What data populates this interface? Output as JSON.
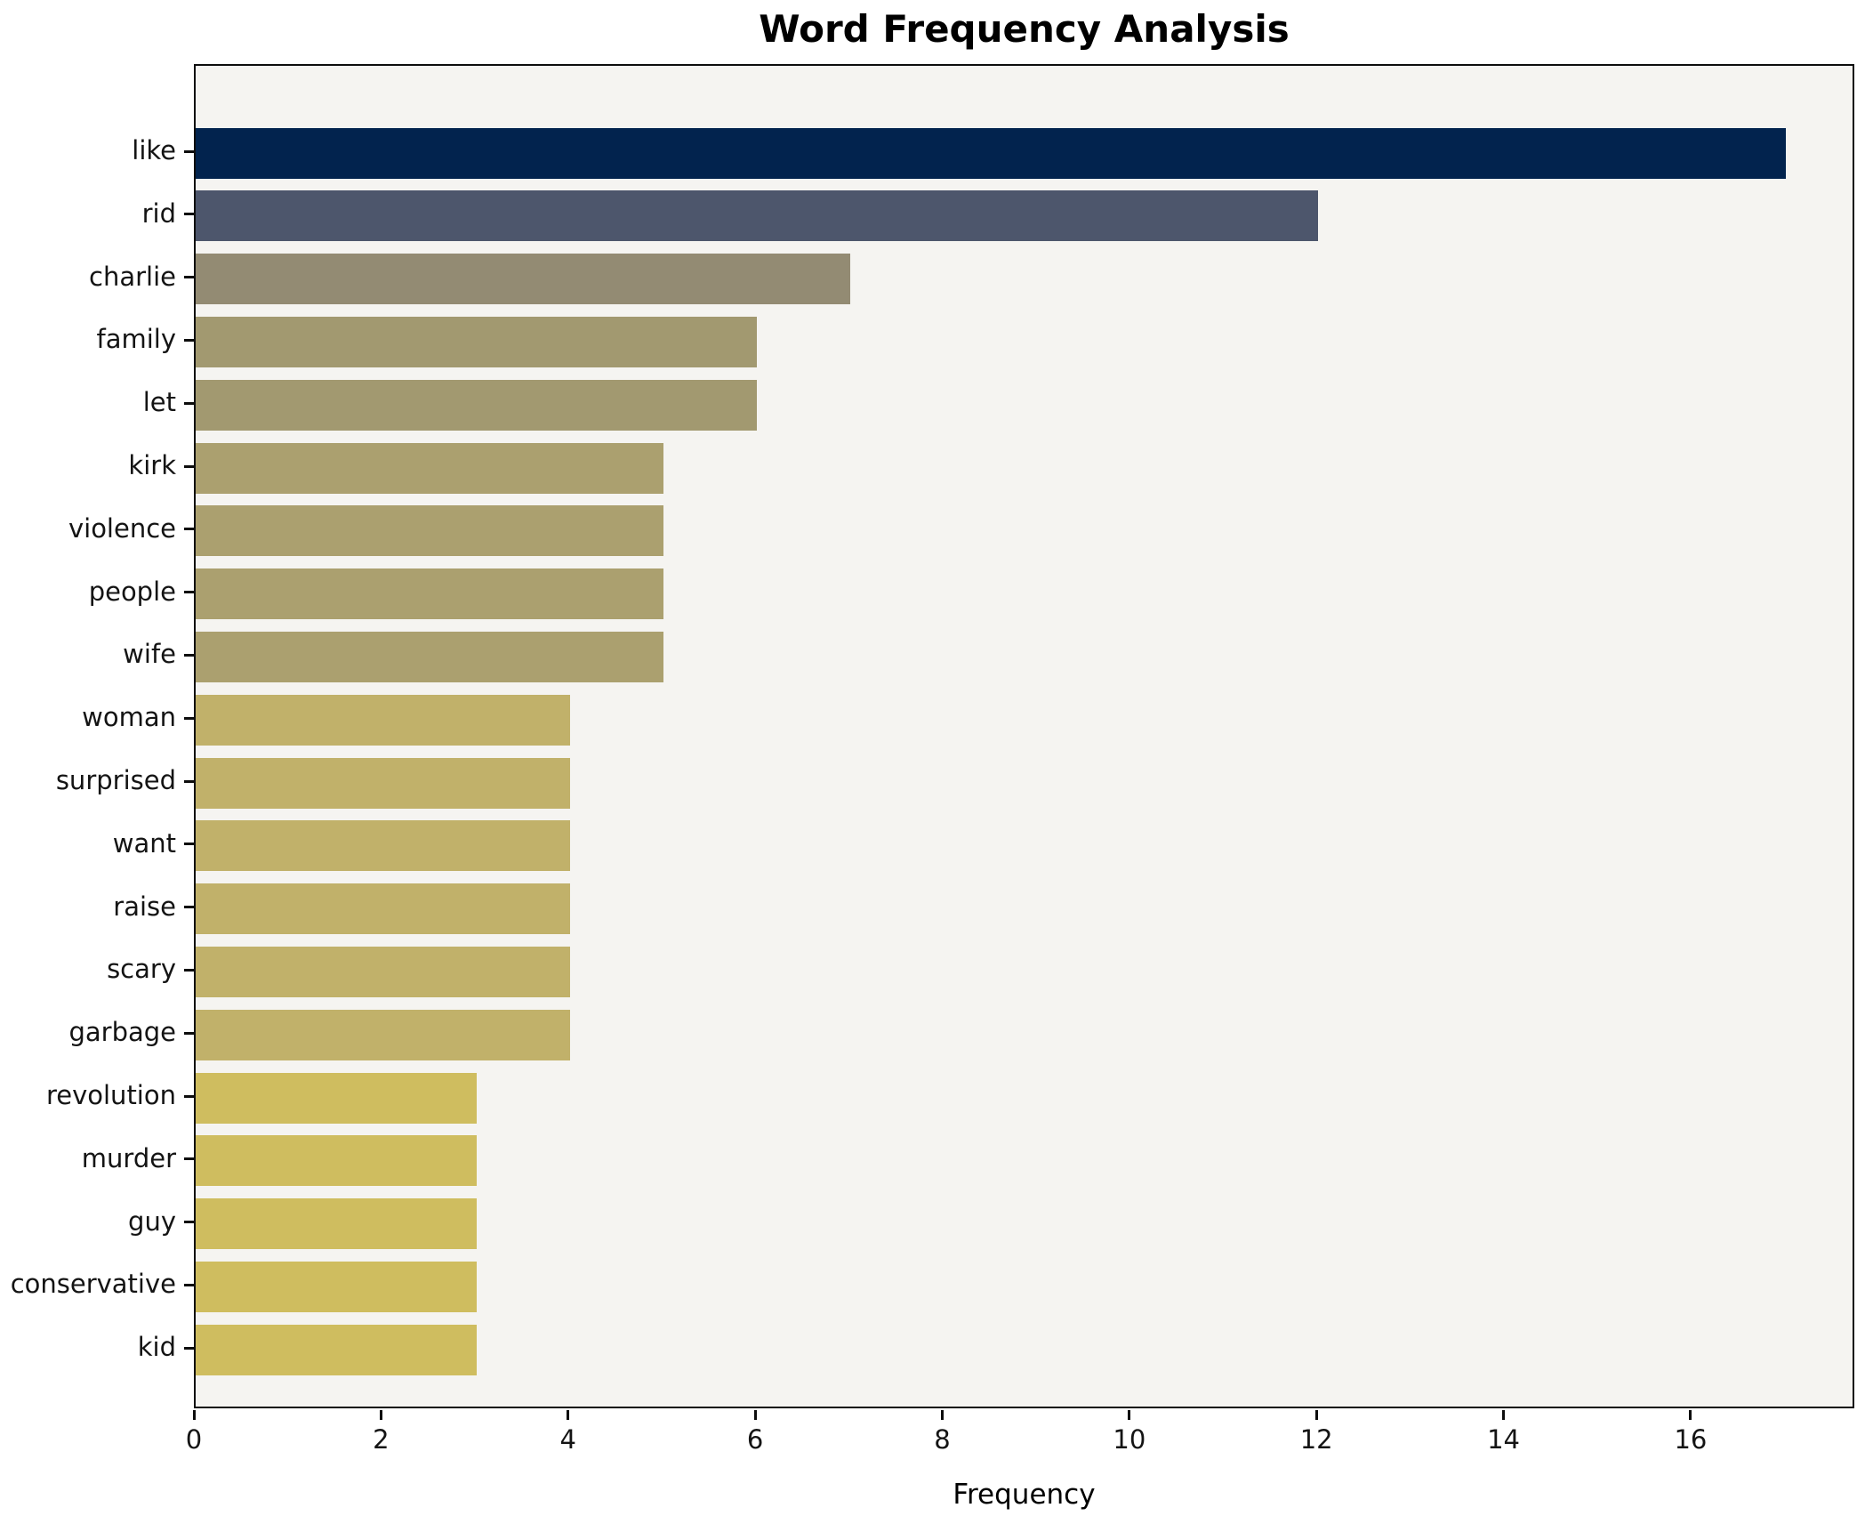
{
  "chart_data": {
    "type": "bar",
    "orientation": "horizontal",
    "title": "Word Frequency Analysis",
    "xlabel": "Frequency",
    "ylabel": "",
    "categories": [
      "like",
      "rid",
      "charlie",
      "family",
      "let",
      "kirk",
      "violence",
      "people",
      "wife",
      "woman",
      "surprised",
      "want",
      "raise",
      "scary",
      "garbage",
      "revolution",
      "murder",
      "guy",
      "conservative",
      "kid"
    ],
    "values": [
      17,
      12,
      7,
      6,
      6,
      5,
      5,
      5,
      5,
      4,
      4,
      4,
      4,
      4,
      4,
      3,
      3,
      3,
      3,
      3
    ],
    "bar_colors": [
      "#02234e",
      "#4d566c",
      "#938b73",
      "#a29970",
      "#a29970",
      "#aba06f",
      "#aba06f",
      "#aba06f",
      "#aba06f",
      "#c1b16a",
      "#c1b16a",
      "#c1b16a",
      "#c1b16a",
      "#c1b16a",
      "#c1b16a",
      "#cfbd5f",
      "#cfbd5f",
      "#cfbd5f",
      "#cfbd5f",
      "#cfbd5f"
    ],
    "x_ticks": [
      0,
      2,
      4,
      6,
      8,
      10,
      12,
      14,
      16
    ],
    "xlim": [
      0,
      17.75
    ],
    "grid": false,
    "legend": false,
    "plot_background": "#f5f4f1",
    "figure_background": "#ffffff",
    "axis_color": "#0d0d0d"
  }
}
